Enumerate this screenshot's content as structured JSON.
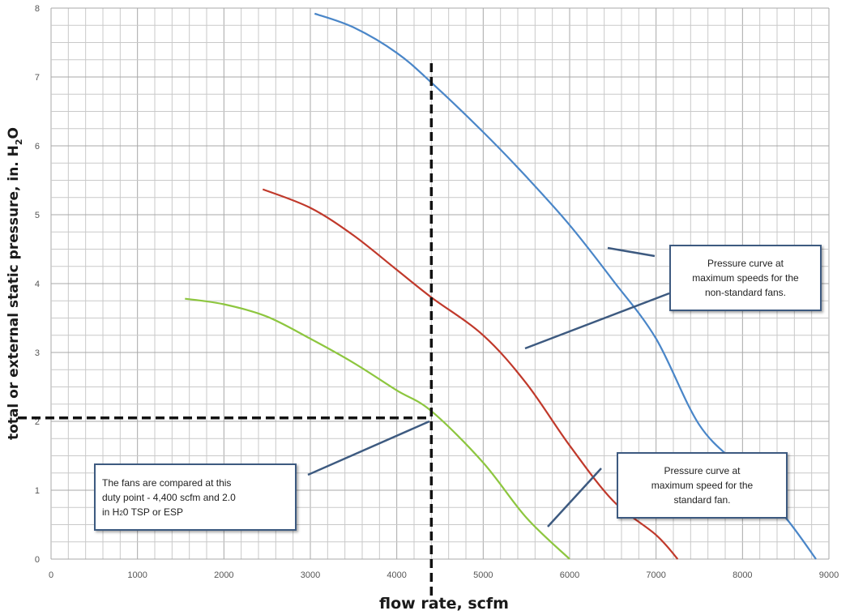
{
  "chart_data": {
    "type": "line",
    "xlabel": "flow rate, scfm",
    "ylabel_parts": [
      "total  or external static pressure, in. H",
      "2",
      "O"
    ],
    "xlim": [
      0,
      9000
    ],
    "ylim": [
      0,
      8
    ],
    "x_ticks": [
      "0",
      "1000",
      "2000",
      "3000",
      "4000",
      "5000",
      "6000",
      "7000",
      "8000",
      "9000"
    ],
    "y_ticks": [
      "0",
      "1",
      "2",
      "3",
      "4",
      "5",
      "6",
      "7",
      "8"
    ],
    "grid": true,
    "series": [
      {
        "color": "#4a86c8",
        "x": [
          3050,
          3500,
          4000,
          4400,
          5000,
          5500,
          6000,
          6500,
          7000,
          7500,
          8000,
          8500,
          8850
        ],
        "y": [
          7.92,
          7.72,
          7.35,
          6.92,
          6.2,
          5.55,
          4.85,
          4.05,
          3.2,
          1.95,
          1.3,
          0.6,
          0.0
        ]
      },
      {
        "color": "#c0392b",
        "x": [
          2450,
          3000,
          3500,
          4000,
          4400,
          5000,
          5500,
          6000,
          6500,
          7000,
          7250
        ],
        "y": [
          5.37,
          5.1,
          4.7,
          4.2,
          3.8,
          3.25,
          2.55,
          1.65,
          0.85,
          0.35,
          0.0
        ]
      },
      {
        "color": "#8dc63f",
        "x": [
          1550,
          2000,
          2500,
          3000,
          3500,
          4000,
          4400,
          5000,
          5500,
          6000
        ],
        "y": [
          3.78,
          3.7,
          3.52,
          3.2,
          2.85,
          2.45,
          2.15,
          1.4,
          0.6,
          0.0
        ]
      }
    ],
    "duty_point": {
      "x": 4400,
      "y": 2.05
    },
    "annotations": [
      {
        "id": "nonstandard",
        "text": "Pressure curve at\nmaximum speeds for the\nnon-standard fans."
      },
      {
        "id": "standard",
        "text": "Pressure curve at\nmaximum speed for the\nstandard fan."
      },
      {
        "id": "duty",
        "text_line1": "The fans are compared at this",
        "text_line2": "duty point - 4,400 scfm and 2.0",
        "text_line3_pre": "in H",
        "text_line3_sub": "2",
        "text_line3_post": "0 TSP or ESP"
      }
    ]
  }
}
